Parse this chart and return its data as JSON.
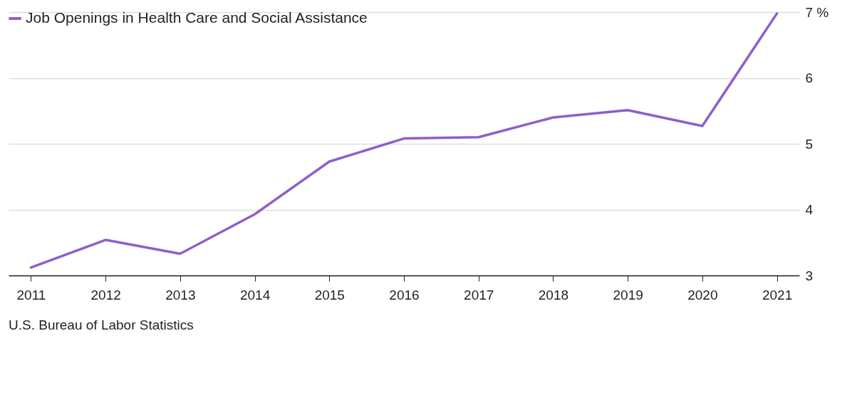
{
  "chart_data": {
    "type": "line",
    "categories": [
      "2011",
      "2012",
      "2013",
      "2014",
      "2015",
      "2016",
      "2017",
      "2018",
      "2019",
      "2020",
      "2021"
    ],
    "series": [
      {
        "name": "Job Openings in Health Care and Social Assistance",
        "color": "#8f5fc9",
        "values": [
          3.12,
          3.54,
          3.33,
          3.93,
          4.73,
          5.08,
          5.1,
          5.4,
          5.51,
          5.27,
          6.98
        ]
      }
    ],
    "ylim": [
      3,
      7
    ],
    "yticks": [
      3,
      4,
      5,
      6,
      {
        "value": 7,
        "label": "7 %"
      }
    ],
    "grid": "y",
    "legend": "top left",
    "marker": "none",
    "line_style": "solid",
    "annotations": [
      "U.S. Bureau of Labor Statistics"
    ]
  }
}
